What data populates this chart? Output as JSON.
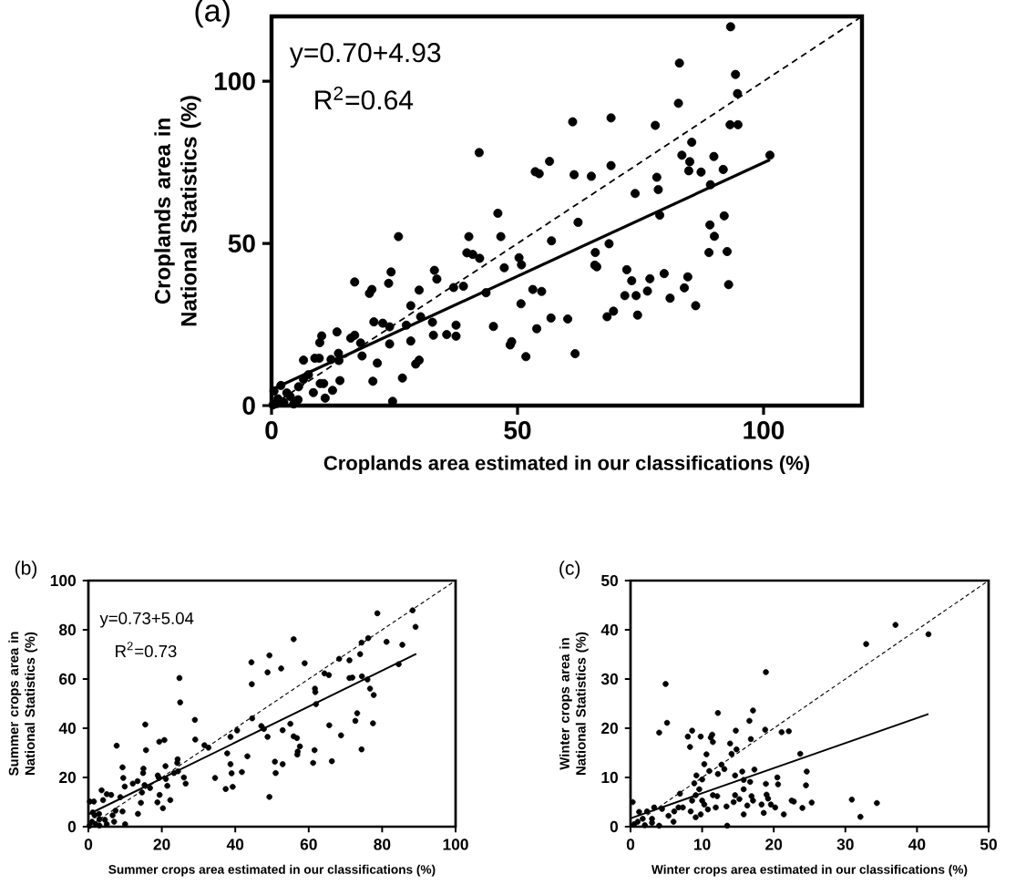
{
  "chart_data": [
    {
      "type": "scatter",
      "title": "(a)",
      "xlabel": "Croplands area estimated in our classifications (%)",
      "ylabel": "Croplands area in National Statistics (%)",
      "annotations": [
        "y=0.70+4.93",
        "R$^{2}$=0.64"
      ],
      "xlim": [
        0,
        120
      ],
      "ylim": [
        0,
        120
      ],
      "xticks": [
        0,
        50,
        100
      ],
      "yticks": [
        0,
        50,
        100
      ],
      "series": [
        {
          "marker": "circle",
          "color": "#000000",
          "x": [
            42.2,
            53.6,
            54.4,
            56.5,
            46.0,
            25.8,
            40.1,
            46.6,
            56.9,
            39.7,
            40.9,
            42.3,
            50.3,
            50.8,
            47.3,
            24.3,
            33.1,
            33.6,
            23.8,
            16.9,
            20.4,
            19.9,
            30.0,
            37.0,
            39.0,
            43.6,
            53.1,
            54.9,
            50.7,
            28.3,
            30.3,
            20.8,
            22.6,
            24.0,
            27.4,
            32.7,
            37.5,
            45.1,
            53.9,
            56.8,
            60.2,
            13.3,
            16.1,
            16.9,
            18.1,
            10.2,
            9.8,
            32.9,
            35.6,
            37.5,
            28.3,
            24.0,
            6.5,
            8.8,
            9.7,
            12.1,
            13.6,
            13.7,
            18.4,
            21.5,
            29.3,
            30.0,
            48.8,
            48.5,
            51.7,
            9.9,
            10.6,
            13.9,
            12.4,
            8.5,
            10.9,
            20.6,
            26.6,
            24.6,
            5.4,
            5.5,
            6.5,
            1.9,
            3.1,
            1.3,
            3.8,
            1.0,
            0.5,
            2.5,
            4.5,
            0.3,
            7.5,
            93.3,
            82.9,
            94.3,
            94.7,
            82.7,
            61.2,
            69.0,
            78.0,
            93.2,
            94.8,
            85.4,
            83.4,
            85.0,
            89.9,
            101.3,
            84.8,
            87.3,
            91.8,
            61.5,
            65.0,
            69.0,
            78.3,
            78.6,
            73.9,
            89.2,
            62.3,
            92.0,
            78.9,
            89.1,
            90.0,
            88.9,
            92.6,
            68.6,
            65.8,
            65.7,
            66.1,
            72.2,
            73.2,
            76.9,
            79.8,
            84.6,
            83.9,
            92.9,
            71.8,
            74.1,
            76.4,
            81.0,
            86.2,
            68.2,
            69.5,
            74.4,
            61.7
          ],
          "values": [
            78.0,
            72.1,
            71.5,
            75.3,
            59.3,
            52.1,
            52.1,
            52.1,
            50.8,
            47.1,
            46.6,
            45.4,
            45.6,
            43.4,
            42.5,
            41.2,
            41.7,
            39.0,
            37.7,
            38.1,
            35.8,
            34.6,
            35.6,
            36.4,
            36.8,
            34.8,
            35.8,
            35.2,
            31.4,
            30.8,
            27.4,
            25.8,
            25.4,
            24.3,
            24.8,
            25.7,
            24.8,
            24.4,
            23.7,
            27.0,
            26.7,
            22.7,
            20.8,
            21.7,
            19.3,
            21.5,
            19.4,
            21.7,
            21.9,
            21.4,
            19.9,
            19.0,
            14.0,
            14.6,
            14.6,
            14.2,
            16.1,
            13.9,
            15.3,
            13.1,
            12.8,
            14.0,
            19.7,
            18.7,
            15.1,
            6.8,
            6.8,
            7.7,
            4.7,
            4.0,
            2.3,
            7.5,
            8.5,
            1.3,
            1.8,
            5.8,
            8.1,
            6.2,
            3.9,
            2.1,
            2.8,
            0.6,
            4.5,
            1.0,
            0.5,
            0.2,
            9.5,
            116.8,
            105.6,
            102.1,
            96.2,
            93.2,
            87.5,
            88.7,
            86.4,
            86.6,
            86.6,
            81.2,
            77.2,
            75.2,
            76.8,
            77.2,
            72.4,
            72.0,
            72.8,
            71.2,
            70.7,
            74.0,
            70.4,
            66.6,
            65.4,
            68.1,
            56.5,
            58.5,
            58.7,
            55.7,
            52.2,
            47.2,
            47.5,
            49.9,
            47.2,
            43.3,
            42.8,
            41.9,
            38.5,
            39.1,
            40.7,
            39.7,
            36.3,
            37.3,
            33.9,
            33.9,
            35.3,
            33.1,
            30.8,
            27.4,
            29.1,
            27.9,
            16.0
          ]
        },
        {
          "type": "line",
          "line_style": "solid",
          "color": "#000000",
          "x": [
            0,
            101.3
          ],
          "values": [
            4.9,
            75.8
          ]
        },
        {
          "type": "line",
          "line_style": "dashed",
          "color": "#000000",
          "x": [
            0,
            120
          ],
          "values": [
            0,
            120
          ]
        }
      ]
    },
    {
      "type": "scatter",
      "title": "(b)",
      "xlabel": "Summer crops area estimated in our classifications (%)",
      "ylabel": "Summer crops area in National Statistics (%)",
      "annotations": [
        "y=0.73+5.04",
        "R$^{2}$=0.73"
      ],
      "xlim": [
        0,
        100
      ],
      "ylim": [
        0,
        100
      ],
      "xticks": [
        0,
        20,
        40,
        60,
        80,
        100
      ],
      "yticks": [
        0,
        20,
        40,
        60,
        80,
        100
      ],
      "series": [
        {
          "marker": "circle",
          "color": "#000000",
          "x": [
            78.7,
            88.3,
            89.1,
            55.9,
            76.2,
            74.4,
            81.2,
            85.5,
            74.0,
            68.3,
            71.1,
            58.9,
            44.4,
            49.3,
            48.8,
            52.5,
            64.3,
            65.5,
            71.1,
            71.9,
            74.5,
            76.0,
            76.7,
            77.7,
            61.7,
            61.8,
            62.0,
            84.5,
            44.5,
            24.8,
            25.0,
            77.5,
            73.2,
            72.7,
            65.6,
            68.8,
            74.4,
            61.6,
            61.2,
            66.3,
            55.0,
            52.9,
            55.9,
            56.8,
            57.6,
            57.0,
            56.9,
            47.1,
            47.8,
            48.8,
            50.8,
            52.9,
            51.0,
            49.3,
            44.6,
            40.5,
            38.7,
            37.8,
            38.7,
            39.0,
            39.3,
            37.4,
            41.8,
            43.3,
            34.5,
            29.0,
            29.1,
            31.6,
            32.7,
            15.5,
            15.7,
            7.7,
            9.3,
            9.5,
            9.9,
            19.3,
            20.7,
            15.0,
            14.9,
            21.0,
            18.9,
            24.3,
            24.2,
            24.4,
            26.0,
            26.5,
            23.3,
            21.1,
            21.5,
            19.2,
            19.4,
            18.8,
            20.3,
            22.3,
            12.1,
            13.4,
            14.6,
            14.3,
            13.5,
            16.8,
            15.3,
            8.7,
            3.6,
            4.0,
            5.0,
            6.2,
            7.4,
            9.3,
            6.6,
            0.4,
            1.5,
            1.2,
            1.7,
            2.9,
            4.5,
            1,
            2,
            3,
            5,
            7,
            10,
            3,
            0.3
          ],
          "values": [
            86.7,
            87.9,
            81.2,
            76.2,
            76.6,
            74.8,
            75.1,
            73.9,
            70.1,
            68.2,
            67.6,
            66.4,
            66.8,
            69.6,
            62.7,
            64.3,
            62.3,
            61.6,
            60.4,
            60.6,
            61.1,
            59.8,
            56.1,
            53.5,
            56.1,
            54.7,
            49.8,
            66.0,
            57.9,
            60.4,
            50.5,
            42.0,
            46.1,
            43.0,
            41.2,
            37.1,
            31.4,
            31.1,
            25.9,
            26.6,
            41.8,
            39.2,
            36.7,
            36.0,
            32.6,
            30.5,
            29.3,
            40.9,
            39.7,
            36.5,
            26.4,
            25.4,
            21.8,
            12.1,
            44.0,
            39.1,
            36.5,
            29.8,
            25.4,
            21.7,
            16.2,
            15.3,
            22.2,
            28.6,
            19.8,
            43.4,
            35.4,
            33.1,
            32.1,
            41.5,
            31.1,
            32.9,
            24.1,
            19.8,
            16.3,
            34.5,
            35.2,
            23.6,
            21.8,
            24.6,
            20.8,
            27.4,
            25.9,
            22.5,
            20.0,
            17.5,
            21.8,
            19.4,
            16.6,
            19.8,
            12.9,
            9.9,
            7.5,
            10.8,
            17.5,
            18.5,
            13.9,
            9.7,
            5.2,
            15.7,
            16.9,
            12.0,
            14.8,
            10.8,
            13.2,
            12.9,
            6.5,
            6.2,
            4.6,
            10.2,
            10.2,
            5.8,
            4.6,
            5.2,
            2.8,
            2,
            1,
            0.5,
            1,
            2,
            1,
            3,
            0.3
          ]
        },
        {
          "type": "line",
          "line_style": "solid",
          "color": "#000000",
          "x": [
            0,
            89.3
          ],
          "values": [
            5.0,
            70.2
          ]
        },
        {
          "type": "line",
          "line_style": "dashed",
          "color": "#000000",
          "x": [
            0,
            100
          ],
          "values": [
            0,
            100
          ]
        }
      ]
    },
    {
      "type": "scatter",
      "title": "(c)",
      "xlabel": "Winter crops area estimated in our classifications (%)",
      "ylabel": "Winter crops area in National Statistics (%)",
      "xlim": [
        0,
        50
      ],
      "ylim": [
        0,
        50
      ],
      "xticks": [
        0,
        10,
        20,
        30,
        40,
        50
      ],
      "yticks": [
        0,
        10,
        20,
        30,
        40,
        50
      ],
      "series": [
        {
          "marker": "circle",
          "color": "#000000",
          "x": [
            37.0,
            41.6,
            32.9,
            18.9,
            4.9,
            5.1,
            4.0,
            12.2,
            17.1,
            16.6,
            14.7,
            18.8,
            21.1,
            22.1,
            8.0,
            8.6,
            9.8,
            11.2,
            11.4,
            11.5,
            8.3,
            13.9,
            16.8,
            14.8,
            14.1,
            10.6,
            23.7,
            10.3,
            12.7,
            13.1,
            11.0,
            9.2,
            10.0,
            12.2,
            14.6,
            15.6,
            15.8,
            17.3,
            16.7,
            24.6,
            20.5,
            20.6,
            18.9,
            24.5,
            8.9,
            9.6,
            6.9,
            9.1,
            11.5,
            12.1,
            14.6,
            15.8,
            19.0,
            19.2,
            16.9,
            17.1,
            8.6,
            10.0,
            10.3,
            10.8,
            11.9,
            13.4,
            14.4,
            15.2,
            16.3,
            18.3,
            19.6,
            20.2,
            22.5,
            22.8,
            25.3,
            24.0,
            21.4,
            18.6,
            15.8,
            30.9,
            34.4,
            32.1,
            8.4,
            9.8,
            9.1,
            5.3,
            6.1,
            6.7,
            7.3,
            4.4,
            3.3,
            2.3,
            1.2,
            0.3,
            1.7,
            3.0,
            0.5,
            1,
            2,
            3,
            4,
            6,
            13.5
          ],
          "values": [
            41.0,
            39.1,
            37.1,
            31.4,
            29.0,
            21.1,
            19.1,
            23.1,
            23.6,
            21.5,
            19.5,
            19.7,
            19.2,
            19.4,
            18.3,
            19.5,
            18.3,
            18.1,
            18.7,
            17.2,
            16.2,
            16.9,
            17.8,
            15.7,
            14.8,
            14.7,
            14.8,
            12.7,
            12.6,
            11.7,
            11.3,
            10.4,
            9.6,
            10.7,
            10.4,
            11.2,
            9.5,
            11.6,
            9.1,
            11.2,
            10.0,
            8.6,
            8.7,
            8.4,
            8.8,
            7.6,
            6.7,
            6.4,
            6.4,
            6.2,
            6.4,
            7.6,
            6.5,
            5.7,
            6.2,
            5.3,
            5.3,
            5.3,
            4.5,
            3.5,
            3.9,
            4.1,
            5.0,
            5.6,
            4.3,
            4.5,
            4.5,
            3.9,
            5.3,
            5.1,
            4.9,
            3.8,
            2.5,
            2.8,
            2.5,
            5.5,
            4.8,
            2.0,
            3.1,
            2.5,
            1.9,
            2.2,
            3.1,
            3.9,
            3.9,
            3.6,
            3.9,
            3.1,
            3.0,
            5.0,
            1.6,
            1.6,
            0.5,
            1,
            0.3,
            0.8,
            0.2,
            1,
            0.2
          ]
        },
        {
          "type": "line",
          "line_style": "solid",
          "color": "#000000",
          "x": [
            0,
            41.6
          ],
          "values": [
            1.7,
            22.9
          ]
        },
        {
          "type": "line",
          "line_style": "dashed",
          "color": "#000000",
          "x": [
            0,
            50
          ],
          "values": [
            0,
            50
          ]
        }
      ]
    }
  ]
}
